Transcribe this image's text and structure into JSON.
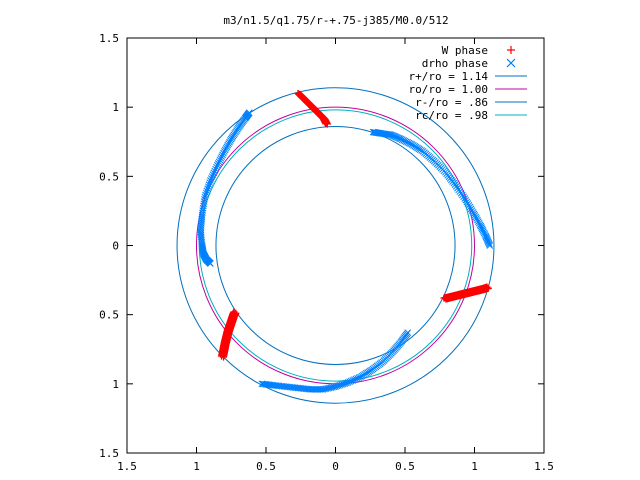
{
  "chart_data": {
    "type": "scatter",
    "title": "m3/n1.5/q1.75/r-+.75-j385/M0.0/512",
    "xlabel": "",
    "ylabel": "",
    "xlim": [
      -1.5,
      1.5
    ],
    "ylim": [
      -1.5,
      1.5
    ],
    "x_ticks": [
      -1.5,
      -1,
      -0.5,
      0,
      0.5,
      1,
      1.5
    ],
    "y_ticks": [
      -1.5,
      -1,
      -0.5,
      0,
      0.5,
      1,
      1.5
    ],
    "x_tick_labels": [
      "1.5",
      "1",
      "0.5",
      "0",
      "0.5",
      "1",
      "1.5"
    ],
    "y_tick_labels": [
      "1.5",
      "1",
      "0.5",
      "0",
      "0.5",
      "1",
      "1.5"
    ],
    "grid": false,
    "legend_position": "top-right",
    "legend": [
      {
        "label": "W phase",
        "marker": "+",
        "color": "#ff0000"
      },
      {
        "label": "drho phase",
        "marker": "x",
        "color": "#0080ff"
      },
      {
        "label": "r+/ro = 1.14",
        "line": true,
        "color": "#0070c0"
      },
      {
        "label": "ro/ro = 1.00",
        "line": true,
        "color": "#c000a0"
      },
      {
        "label": "r-/ro = .86",
        "line": true,
        "color": "#0070c0"
      },
      {
        "label": "rc/ro = .98",
        "line": true,
        "color": "#00b0c0"
      }
    ],
    "circles": [
      {
        "name": "r+/ro = 1.14",
        "radius": 1.14,
        "color": "#0070c0"
      },
      {
        "name": "ro/ro = 1.00",
        "radius": 1.0,
        "color": "#c000a0"
      },
      {
        "name": "r-/ro = .86",
        "radius": 0.86,
        "color": "#0070c0"
      },
      {
        "name": "rc/ro = .98",
        "radius": 0.98,
        "color": "#00b0c0"
      }
    ],
    "series": [
      {
        "name": "W phase",
        "marker": "+",
        "color": "#ff0000",
        "segments": [
          {
            "x": [
              -0.27,
              -0.24,
              -0.21,
              -0.18,
              -0.15,
              -0.12,
              -0.09,
              -0.07
            ],
            "y": [
              1.1,
              1.07,
              1.04,
              1.01,
              0.98,
              0.95,
              0.92,
              0.88
            ]
          },
          {
            "x": [
              0.78,
              0.82,
              0.86,
              0.9,
              0.94,
              0.98,
              1.02,
              1.06,
              1.09
            ],
            "y": [
              -0.38,
              -0.37,
              -0.36,
              -0.35,
              -0.34,
              -0.33,
              -0.32,
              -0.31,
              -0.3
            ]
          },
          {
            "x": [
              -0.82,
              -0.81,
              -0.8,
              -0.79,
              -0.78,
              -0.77,
              -0.76,
              -0.75,
              -0.74,
              -0.73
            ],
            "y": [
              -0.8,
              -0.75,
              -0.7,
              -0.66,
              -0.62,
              -0.59,
              -0.56,
              -0.53,
              -0.5,
              -0.48
            ]
          }
        ]
      },
      {
        "name": "drho phase",
        "marker": "x",
        "color": "#0080ff",
        "segments": [
          {
            "x": [
              -0.62,
              -0.65,
              -0.7,
              -0.75,
              -0.8,
              -0.85,
              -0.9,
              -0.94,
              -0.96,
              -0.97,
              -0.96,
              -0.95,
              -0.93,
              -0.9
            ],
            "y": [
              0.96,
              0.92,
              0.85,
              0.77,
              0.68,
              0.58,
              0.47,
              0.35,
              0.22,
              0.1,
              0.0,
              -0.06,
              -0.1,
              -0.13
            ]
          },
          {
            "x": [
              0.27,
              0.33,
              0.4,
              0.47,
              0.55,
              0.63,
              0.71,
              0.79,
              0.86,
              0.93,
              0.99,
              1.04,
              1.08,
              1.11
            ],
            "y": [
              0.82,
              0.81,
              0.8,
              0.77,
              0.73,
              0.68,
              0.61,
              0.53,
              0.44,
              0.34,
              0.24,
              0.15,
              0.07,
              0.0
            ]
          },
          {
            "x": [
              -0.53,
              -0.45,
              -0.36,
              -0.27,
              -0.18,
              -0.09,
              0.0,
              0.09,
              0.18,
              0.26,
              0.34,
              0.41,
              0.47,
              0.52
            ],
            "y": [
              -1.0,
              -1.01,
              -1.02,
              -1.03,
              -1.04,
              -1.04,
              -1.02,
              -0.99,
              -0.95,
              -0.9,
              -0.84,
              -0.77,
              -0.7,
              -0.63
            ]
          }
        ]
      }
    ]
  }
}
